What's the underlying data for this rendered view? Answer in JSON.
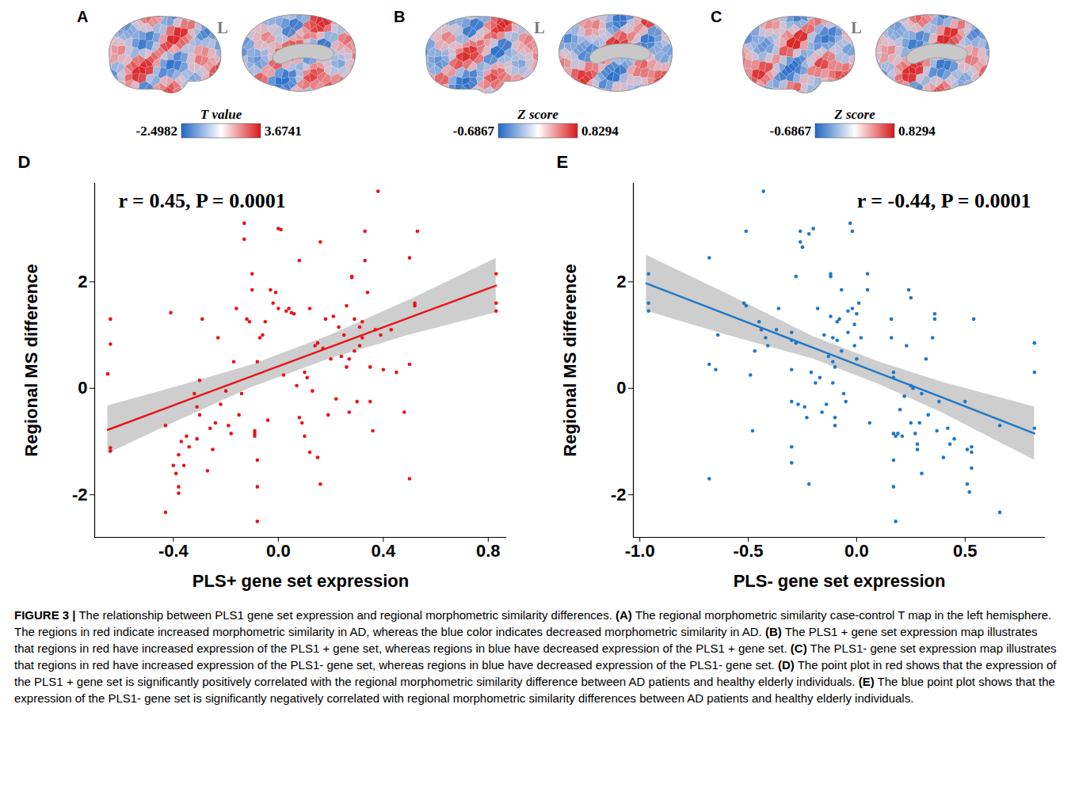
{
  "brain_maps": [
    {
      "panel": "A",
      "hemisphere": "L",
      "colorbar_title": "T value",
      "colorbar_range": [
        -2.4982,
        3.6741
      ],
      "colors": [
        "#2166c4",
        "#ffffff",
        "#d7191c"
      ]
    },
    {
      "panel": "B",
      "hemisphere": "L",
      "colorbar_title": "Z score",
      "colorbar_range": [
        -0.6867,
        0.8294
      ],
      "colors": [
        "#2166c4",
        "#ffffff",
        "#d7191c"
      ]
    },
    {
      "panel": "C",
      "hemisphere": "L",
      "colorbar_title": "Z score",
      "colorbar_range": [
        -0.6867,
        0.8294
      ],
      "colors": [
        "#2166c4",
        "#ffffff",
        "#d7191c"
      ]
    }
  ],
  "chart_data": [
    {
      "panel": "D",
      "type": "scatter",
      "annotation": "r = 0.45, P = 0.0001",
      "x_label": "PLS+ gene set expression",
      "y_label": "Regional MS difference",
      "color": "#e8141a",
      "xlim": [
        -0.7,
        0.87
      ],
      "ylim": [
        -2.8,
        3.85
      ],
      "xticks": [
        -0.4,
        {
          "value": 0,
          "label": "0.0"
        },
        0.4,
        0.8
      ],
      "yticks": [
        -2,
        0,
        2
      ],
      "grid": false,
      "x": [
        -0.65,
        -0.64,
        -0.64,
        -0.64,
        -0.64,
        -0.43,
        -0.43,
        -0.41,
        -0.4,
        -0.39,
        -0.38,
        -0.38,
        -0.38,
        -0.37,
        -0.36,
        -0.35,
        -0.34,
        -0.32,
        -0.31,
        -0.31,
        -0.3,
        -0.3,
        -0.29,
        -0.27,
        -0.26,
        -0.25,
        -0.24,
        -0.23,
        -0.22,
        -0.2,
        -0.19,
        -0.18,
        -0.17,
        -0.16,
        -0.15,
        -0.14,
        -0.13,
        -0.13,
        -0.12,
        -0.11,
        -0.1,
        -0.1,
        -0.09,
        -0.09,
        -0.09,
        -0.08,
        -0.08,
        -0.08,
        -0.08,
        -0.07,
        -0.06,
        -0.05,
        -0.04,
        -0.03,
        -0.02,
        -0.01,
        0.0,
        0.0,
        0.01,
        0.02,
        0.03,
        0.04,
        0.05,
        0.06,
        0.07,
        0.08,
        0.08,
        0.09,
        0.1,
        0.1,
        0.11,
        0.12,
        0.12,
        0.13,
        0.14,
        0.15,
        0.15,
        0.16,
        0.16,
        0.17,
        0.18,
        0.19,
        0.2,
        0.21,
        0.22,
        0.23,
        0.24,
        0.25,
        0.26,
        0.26,
        0.27,
        0.27,
        0.28,
        0.28,
        0.29,
        0.29,
        0.3,
        0.31,
        0.31,
        0.32,
        0.32,
        0.33,
        0.33,
        0.34,
        0.35,
        0.35,
        0.36,
        0.37,
        0.38,
        0.39,
        0.4,
        0.43,
        0.45,
        0.48,
        0.5,
        0.5,
        0.5,
        0.52,
        0.52,
        0.53,
        0.83,
        0.83,
        0.83
      ],
      "values": [
        0.27,
        1.3,
        0.83,
        -1.12,
        -1.18,
        -2.33,
        -0.7,
        1.42,
        -1.45,
        -1.6,
        -1.85,
        -1.97,
        -1.25,
        -1.0,
        -1.45,
        -0.9,
        -1.1,
        -0.1,
        -0.35,
        -0.95,
        -0.5,
        0.15,
        1.3,
        -1.55,
        -0.75,
        -1.15,
        -0.65,
        0.95,
        -0.3,
        -0.05,
        -0.7,
        -0.85,
        0.5,
        1.5,
        -0.5,
        -0.1,
        3.1,
        2.8,
        1.3,
        1.25,
        2.15,
        1.85,
        -0.85,
        -0.8,
        -0.9,
        -1.35,
        -1.85,
        -2.5,
        0.5,
        0.95,
        1.0,
        1.25,
        -0.6,
        1.85,
        1.6,
        1.8,
        1.5,
        3.0,
        2.98,
        0.25,
        1.45,
        1.5,
        1.42,
        1.4,
        0.05,
        2.4,
        -0.55,
        -0.65,
        -0.9,
        0.3,
        0.2,
        1.5,
        -1.2,
        -0.05,
        0.8,
        -1.3,
        0.85,
        2.75,
        -1.8,
        0.75,
        1.3,
        -0.5,
        0.55,
        1.35,
        -0.2,
        1.15,
        0.6,
        1.0,
        1.55,
        0.4,
        0.55,
        -0.45,
        2.1,
        2.08,
        1.3,
        0.7,
        -0.25,
        1.15,
        0.8,
        1.25,
        0.95,
        2.95,
        2.4,
        1.8,
        0.4,
        -0.25,
        -0.8,
        1.1,
        3.7,
        1.0,
        0.35,
        1.1,
        0.3,
        -0.45,
        0.45,
        2.45,
        -1.7,
        1.6,
        1.55,
        2.95,
        1.45,
        1.6,
        2.15
      ],
      "fit": {
        "x": [
          -0.65,
          -0.4,
          -0.1,
          0.2,
          0.5,
          0.83
        ],
        "values": [
          -0.78,
          -0.32,
          0.23,
          0.78,
          1.33,
          1.93
        ],
        "lower": [
          -1.23,
          -0.65,
          0.02,
          0.56,
          1.0,
          1.42
        ],
        "upper": [
          -0.33,
          0.01,
          0.44,
          1.0,
          1.66,
          2.44
        ]
      }
    },
    {
      "panel": "E",
      "type": "scatter",
      "annotation": "r = -0.44, P = 0.0001",
      "x_label": "PLS- gene set expression",
      "y_label": "Regional MS difference",
      "color": "#1f78c8",
      "xlim": [
        -1.03,
        0.87
      ],
      "ylim": [
        -2.8,
        3.85
      ],
      "xticks": [
        {
          "value": -1,
          "label": "-1.0"
        },
        -0.5,
        {
          "value": 0,
          "label": "0.0"
        },
        0.5
      ],
      "yticks": [
        -2,
        0,
        2
      ],
      "grid": false,
      "x": [
        -0.96,
        -0.96,
        -0.96,
        -0.68,
        -0.68,
        -0.68,
        -0.65,
        -0.64,
        -0.52,
        -0.51,
        -0.51,
        -0.49,
        -0.48,
        -0.47,
        -0.45,
        -0.44,
        -0.43,
        -0.42,
        -0.41,
        -0.37,
        -0.36,
        -0.3,
        -0.3,
        -0.3,
        -0.3,
        -0.3,
        -0.3,
        -0.28,
        -0.28,
        -0.27,
        -0.26,
        -0.26,
        -0.25,
        -0.24,
        -0.23,
        -0.22,
        -0.22,
        -0.21,
        -0.2,
        -0.19,
        -0.18,
        -0.17,
        -0.16,
        -0.15,
        -0.14,
        -0.13,
        -0.12,
        -0.12,
        -0.12,
        -0.11,
        -0.11,
        -0.11,
        -0.1,
        -0.1,
        -0.1,
        -0.09,
        -0.09,
        -0.08,
        -0.07,
        -0.07,
        -0.06,
        -0.05,
        -0.04,
        -0.04,
        -0.03,
        -0.02,
        -0.02,
        -0.01,
        -0.01,
        0.0,
        0.0,
        0.01,
        0.02,
        0.05,
        0.05,
        0.06,
        0.16,
        0.16,
        0.17,
        0.17,
        0.17,
        0.17,
        0.17,
        0.18,
        0.18,
        0.19,
        0.2,
        0.21,
        0.22,
        0.23,
        0.24,
        0.25,
        0.25,
        0.25,
        0.26,
        0.27,
        0.28,
        0.28,
        0.29,
        0.3,
        0.3,
        0.32,
        0.33,
        0.35,
        0.36,
        0.36,
        0.37,
        0.38,
        0.4,
        0.42,
        0.43,
        0.45,
        0.5,
        0.51,
        0.51,
        0.52,
        0.53,
        0.53,
        0.53,
        0.54,
        0.66,
        0.66,
        0.82,
        0.82,
        0.82
      ],
      "values": [
        2.15,
        1.6,
        1.45,
        2.45,
        0.45,
        -1.7,
        0.35,
        1.0,
        1.6,
        1.55,
        2.95,
        0.25,
        -0.8,
        0.7,
        1.25,
        1.1,
        3.7,
        0.95,
        0.8,
        1.1,
        1.5,
        1.05,
        0.9,
        0.35,
        -0.25,
        -1.1,
        -1.4,
        2.1,
        0.85,
        -0.3,
        2.75,
        2.95,
        2.65,
        -0.35,
        -0.55,
        2.9,
        -1.8,
        0.3,
        3.0,
        0.1,
        1.5,
        0.2,
        -0.45,
        1.0,
        -0.3,
        0.6,
        2.15,
        2.1,
        1.35,
        0.95,
        0.5,
        0.1,
        -0.55,
        -0.7,
        0.4,
        0.9,
        1.25,
        1.3,
        1.85,
        0.7,
        -0.1,
        -0.25,
        1.45,
        1.05,
        3.1,
        2.95,
        1.5,
        1.2,
        0.8,
        1.4,
        0.55,
        1.6,
        0.95,
        1.85,
        2.15,
        -0.65,
        1.3,
        0.95,
        0.3,
        0.2,
        -0.85,
        -1.35,
        -1.85,
        -2.5,
        -0.9,
        -0.85,
        -0.4,
        -0.9,
        -0.15,
        0.8,
        1.85,
        -0.65,
        1.7,
        0.05,
        0.0,
        -0.85,
        -1.05,
        -1.15,
        -0.65,
        -1.6,
        -0.1,
        0.55,
        -0.5,
        0.95,
        1.3,
        1.4,
        -0.8,
        -0.25,
        -1.3,
        -0.75,
        -1.05,
        -0.95,
        -0.25,
        -1.8,
        -1.15,
        -1.95,
        -1.1,
        -1.2,
        -1.5,
        1.3,
        -2.33,
        -0.7,
        0.85,
        0.3,
        -0.75
      ],
      "fit": {
        "x": [
          -0.97,
          -0.6,
          -0.2,
          0.1,
          0.4,
          0.82
        ],
        "values": [
          1.97,
          1.39,
          0.76,
          0.29,
          -0.18,
          -0.85
        ],
        "lower": [
          1.45,
          1.0,
          0.55,
          0.08,
          -0.47,
          -1.35
        ],
        "upper": [
          2.5,
          1.78,
          0.97,
          0.5,
          0.11,
          -0.35
        ]
      }
    }
  ],
  "caption": {
    "figure_label": "FIGURE 3 |",
    "lead": "The relationship between PLS1 gene set expression and regional morphometric similarity differences.",
    "items": [
      {
        "label": "(A)",
        "text": "The regional morphometric similarity case-control T map in the left hemisphere. The regions in red indicate increased morphometric similarity in AD, whereas the blue color indicates decreased morphometric similarity in AD."
      },
      {
        "label": "(B)",
        "text": "The PLS1 + gene set expression map illustrates that regions in red have increased expression of the PLS1 + gene set, whereas regions in blue have decreased expression of the PLS1 + gene set."
      },
      {
        "label": "(C)",
        "text": "The PLS1- gene set expression map illustrates that regions in red have increased expression of the PLS1- gene set, whereas regions in blue have decreased expression of the PLS1- gene set."
      },
      {
        "label": "(D)",
        "text": "The point plot in red shows that the expression of the PLS1 + gene set is significantly positively correlated with the regional morphometric similarity difference between AD patients and healthy elderly individuals."
      },
      {
        "label": "(E)",
        "text": "The blue point plot shows that the expression of the PLS1- gene set is significantly negatively correlated with regional morphometric similarity differences between AD patients and healthy elderly individuals."
      }
    ]
  }
}
